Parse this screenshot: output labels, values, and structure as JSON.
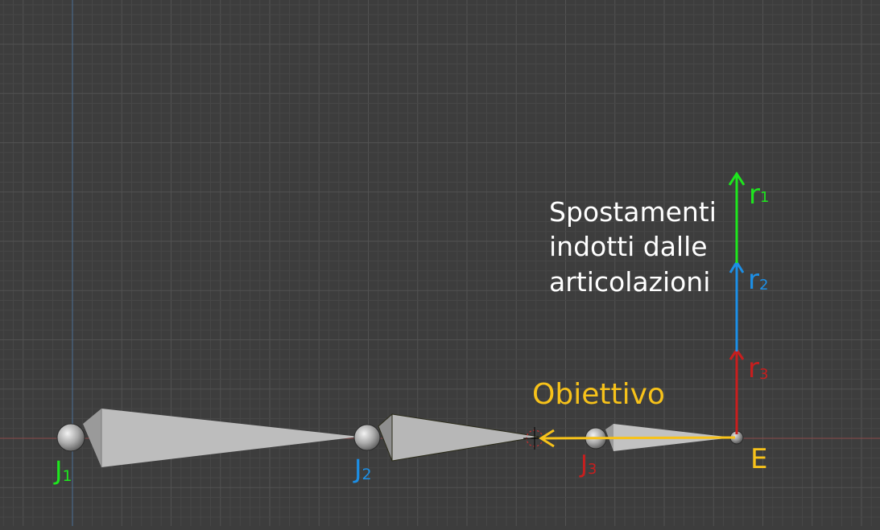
{
  "colors": {
    "background": "#3d3d3d",
    "grid_minor": "#474747",
    "grid_major": "#525252",
    "axis_x": "#8a4a4a",
    "axis_y": "#4a6f95",
    "joint1": "#1ee61e",
    "joint2": "#1c8fe6",
    "joint3": "#c81e1e",
    "target": "#f7c21a",
    "caption": "#ffffff",
    "bone_light": "#bdbdbd",
    "bone_dark": "#8f8f8f"
  },
  "labels": {
    "j1": {
      "main": "J",
      "sub": "1"
    },
    "j2": {
      "main": "J",
      "sub": "2"
    },
    "j3": {
      "main": "J",
      "sub": "3"
    },
    "effector": "E",
    "target": "Obiettivo",
    "r1": {
      "main": "r",
      "sub": "1"
    },
    "r2": {
      "main": "r",
      "sub": "2"
    },
    "r3": {
      "main": "r",
      "sub": "3"
    },
    "caption": [
      "Spostamenti",
      "indotti dalle",
      "articolazioni"
    ]
  },
  "icons": {
    "joint": "sphere",
    "bone": "octahedral-bone",
    "target": "dashed-circle-crosshair"
  }
}
